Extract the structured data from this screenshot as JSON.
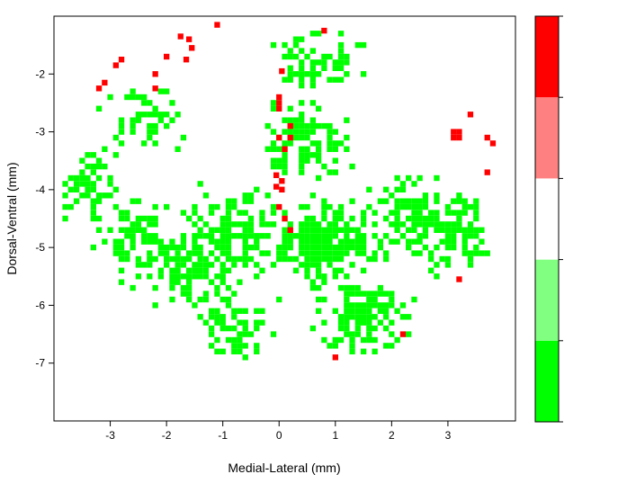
{
  "chart_data": {
    "type": "heatmap",
    "xlabel": "Medial-Lateral (mm)",
    "ylabel": "Dorsal-Ventral (mm)",
    "xlim": [
      -4.0,
      4.2
    ],
    "ylim": [
      -8.0,
      -1.0
    ],
    "xticks": [
      -3,
      -2,
      -1,
      0,
      1,
      2,
      3
    ],
    "yticks": [
      -2,
      -3,
      -4,
      -5,
      -6,
      -7
    ],
    "cell_size_mm": 0.1,
    "legend": {
      "placement": "right",
      "type": "color-scale",
      "levels": [
        "#00ff00",
        "#80ff80",
        "#ffffff",
        "#ff8080",
        "#ff0000"
      ],
      "labels": []
    },
    "colors": {
      "positive": "#ff0000",
      "negative": "#00ff00",
      "background": "#ffffff"
    },
    "red_points": [
      [
        -1.1,
        -1.15
      ],
      [
        0.8,
        -1.25
      ],
      [
        -1.75,
        -1.35
      ],
      [
        -1.6,
        -1.4
      ],
      [
        -1.55,
        -1.55
      ],
      [
        -2.0,
        -1.7
      ],
      [
        -1.65,
        -1.75
      ],
      [
        -2.8,
        -1.75
      ],
      [
        -2.9,
        -1.85
      ],
      [
        0.05,
        -1.95
      ],
      [
        -2.2,
        -2.0
      ],
      [
        -3.1,
        -2.15
      ],
      [
        -3.2,
        -2.25
      ],
      [
        -2.2,
        -2.25
      ],
      [
        0.0,
        -2.4
      ],
      [
        0.0,
        -2.5
      ],
      [
        0.0,
        -2.6
      ],
      [
        3.4,
        -2.7
      ],
      [
        0.2,
        -2.9
      ],
      [
        3.1,
        -3.0
      ],
      [
        3.2,
        -3.0
      ],
      [
        3.1,
        -3.1
      ],
      [
        3.2,
        -3.1
      ],
      [
        3.7,
        -3.1
      ],
      [
        0.0,
        -3.1
      ],
      [
        0.2,
        -3.1
      ],
      [
        3.8,
        -3.2
      ],
      [
        0.1,
        -3.3
      ],
      [
        3.7,
        -3.7
      ],
      [
        -0.05,
        -3.75
      ],
      [
        0.05,
        -3.85
      ],
      [
        -0.05,
        -3.95
      ],
      [
        0.05,
        -4.0
      ],
      [
        0.0,
        -4.3
      ],
      [
        0.1,
        -4.5
      ],
      [
        0.2,
        -4.7
      ],
      [
        3.2,
        -5.55
      ],
      [
        2.2,
        -6.5
      ],
      [
        1.0,
        -6.9
      ]
    ],
    "green_cluster_regions": [
      {
        "center": [
          -3.5,
          -3.9
        ],
        "count": 60
      },
      {
        "center": [
          -2.5,
          -4.8
        ],
        "count": 90
      },
      {
        "center": [
          -1.5,
          -5.4
        ],
        "count": 120
      },
      {
        "center": [
          -0.8,
          -4.7
        ],
        "count": 120
      },
      {
        "center": [
          0.4,
          -3.2
        ],
        "count": 110
      },
      {
        "center": [
          0.8,
          -4.9
        ],
        "count": 240
      },
      {
        "center": [
          1.5,
          -6.2
        ],
        "count": 150
      },
      {
        "center": [
          2.4,
          -4.5
        ],
        "count": 120
      },
      {
        "center": [
          3.3,
          -4.8
        ],
        "count": 90
      },
      {
        "center": [
          0.6,
          -1.6
        ],
        "count": 60
      },
      {
        "center": [
          -2.3,
          -2.8
        ],
        "count": 50
      },
      {
        "center": [
          -0.8,
          -6.5
        ],
        "count": 60
      }
    ]
  }
}
